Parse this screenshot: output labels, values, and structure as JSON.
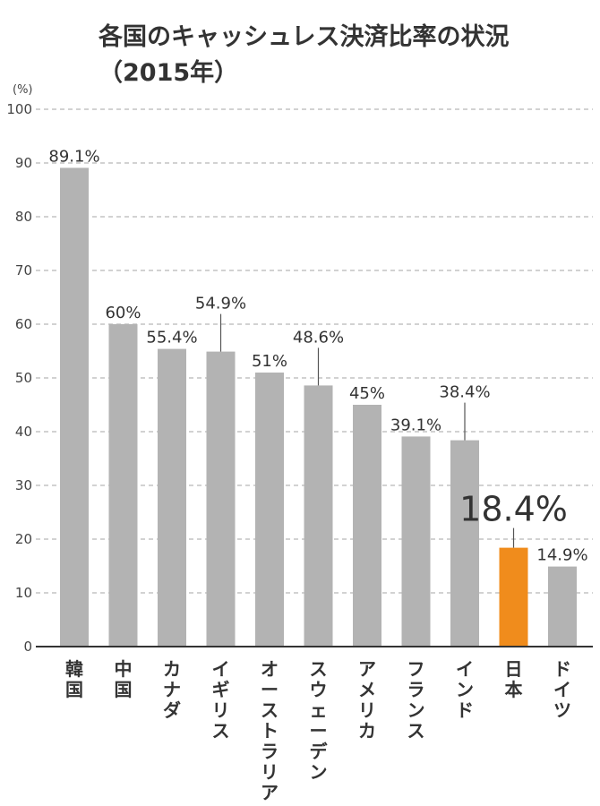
{
  "header": {
    "title_line1": "各国のキャッシュレス決済比率の状況",
    "title_line2": "（2015年）"
  },
  "chart_data": {
    "type": "bar",
    "title": "各国のキャッシュレス決済比率の状況（2015年）",
    "unit_label": "(%)",
    "xlabel": "",
    "ylabel": "(%)",
    "ylim": [
      0,
      100
    ],
    "yticks": [
      0,
      10,
      20,
      30,
      40,
      50,
      60,
      70,
      80,
      90,
      100
    ],
    "grid": true,
    "categories": [
      "韓国",
      "中国",
      "カナダ",
      "イギリス",
      "オーストラリア",
      "スウェーデン",
      "アメリカ",
      "フランス",
      "インド",
      "日本",
      "ドイツ"
    ],
    "values": [
      89.1,
      60,
      55.4,
      54.9,
      51,
      48.6,
      45,
      39.1,
      38.4,
      18.4,
      14.9
    ],
    "value_labels": [
      "89.1%",
      "60%",
      "55.4%",
      "54.9%",
      "51%",
      "48.6%",
      "45%",
      "39.1%",
      "38.4%",
      "18.4%",
      "14.9%"
    ],
    "highlight_index": 9,
    "leader_line_indices": [
      3,
      5,
      8,
      9
    ],
    "colors": {
      "bar": "#b3b3b3",
      "highlight": "#f08c1c",
      "grid": "#b8b8b8",
      "axis": "#333333",
      "text": "#333333"
    }
  }
}
